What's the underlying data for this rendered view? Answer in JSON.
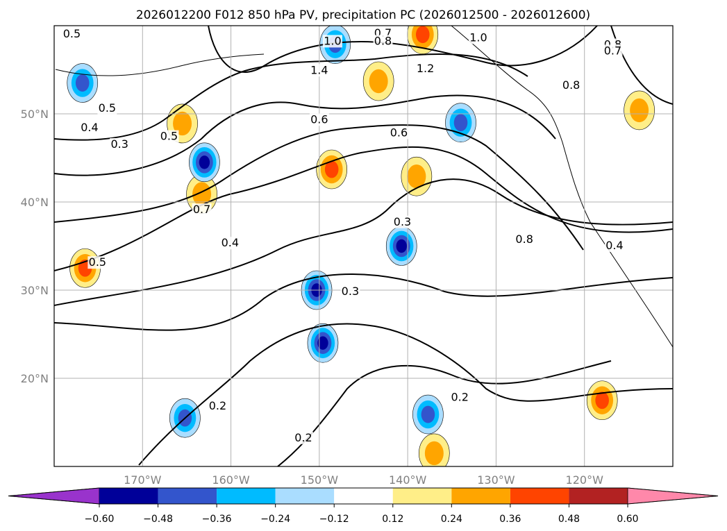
{
  "chart_data": {
    "type": "contour_map",
    "title": "2026012200 F012 850 hPa PV, precipitation PC (2026012500 - 2026012600)",
    "xlabel": "",
    "ylabel": "",
    "xlim_lon": [
      -180,
      -110
    ],
    "ylim_lat": [
      10,
      60
    ],
    "x_ticks": [
      {
        "lon": -170,
        "label": "170°W"
      },
      {
        "lon": -160,
        "label": "160°W"
      },
      {
        "lon": -150,
        "label": "150°W"
      },
      {
        "lon": -140,
        "label": "140°W"
      },
      {
        "lon": -130,
        "label": "130°W"
      },
      {
        "lon": -120,
        "label": "120°W"
      }
    ],
    "y_ticks": [
      {
        "lat": 20,
        "label": "20°N"
      },
      {
        "lat": 30,
        "label": "30°N"
      },
      {
        "lat": 40,
        "label": "40°N"
      },
      {
        "lat": 50,
        "label": "50°N"
      }
    ],
    "grid": true,
    "colorbar": {
      "levels": [
        -0.6,
        -0.48,
        -0.36,
        -0.24,
        -0.12,
        0.12,
        0.24,
        0.36,
        0.48,
        0.6
      ],
      "tick_labels": [
        "−0.60",
        "−0.48",
        "−0.36",
        "−0.24",
        "−0.12",
        "0.12",
        "0.24",
        "0.36",
        "0.48",
        "0.60"
      ],
      "colors": [
        "#9933cc",
        "#000099",
        "#3355cc",
        "#00bbff",
        "#aaddff",
        "#ffffff",
        "#ffee88",
        "#ffa500",
        "#ff4400",
        "#b22222",
        "#ff88aa"
      ],
      "extend": "both"
    },
    "pv_contour_labels": [
      {
        "text": "0.5",
        "lon": -178.0,
        "lat": 58.8
      },
      {
        "text": "0.7",
        "lon": -142.8,
        "lat": 58.9
      },
      {
        "text": "0.8",
        "lon": -142.8,
        "lat": 58.0
      },
      {
        "text": "1.0",
        "lon": -148.5,
        "lat": 58.0
      },
      {
        "text": "1.0",
        "lon": -132.0,
        "lat": 58.4
      },
      {
        "text": "0.8",
        "lon": -116.8,
        "lat": 57.6
      },
      {
        "text": "0.7",
        "lon": -116.8,
        "lat": 56.9
      },
      {
        "text": "1.4",
        "lon": -150.0,
        "lat": 54.7
      },
      {
        "text": "1.2",
        "lon": -138.0,
        "lat": 54.9
      },
      {
        "text": "0.8",
        "lon": -121.5,
        "lat": 53.0
      },
      {
        "text": "0.5",
        "lon": -174.0,
        "lat": 50.4
      },
      {
        "text": "0.4",
        "lon": -176.0,
        "lat": 48.2
      },
      {
        "text": "0.3",
        "lon": -172.6,
        "lat": 46.3
      },
      {
        "text": "0.5",
        "lon": -167.0,
        "lat": 47.2
      },
      {
        "text": "0.6",
        "lon": -150.0,
        "lat": 49.1
      },
      {
        "text": "0.6",
        "lon": -141.0,
        "lat": 47.6
      },
      {
        "text": "0.7",
        "lon": -163.3,
        "lat": 38.9
      },
      {
        "text": "0.4",
        "lon": -160.1,
        "lat": 35.1
      },
      {
        "text": "0.5",
        "lon": -175.1,
        "lat": 32.9
      },
      {
        "text": "0.3",
        "lon": -140.6,
        "lat": 37.5
      },
      {
        "text": "0.8",
        "lon": -126.8,
        "lat": 35.5
      },
      {
        "text": "0.4",
        "lon": -116.6,
        "lat": 34.8
      },
      {
        "text": "0.3",
        "lon": -146.5,
        "lat": 29.6
      },
      {
        "text": "0.2",
        "lon": -134.1,
        "lat": 17.6
      },
      {
        "text": "0.2",
        "lon": -161.5,
        "lat": 16.6
      },
      {
        "text": "0.2",
        "lon": -151.8,
        "lat": 13.0
      }
    ],
    "precip_shaded_regions": [
      {
        "sign": "positive",
        "lon": -176.5,
        "lat": 32.5,
        "peak_level": 0.36
      },
      {
        "sign": "positive",
        "lon": -148.6,
        "lat": 43.7,
        "peak_level": 0.36
      },
      {
        "sign": "positive",
        "lon": -138.3,
        "lat": 59.0,
        "peak_level": 0.36
      },
      {
        "sign": "positive",
        "lon": -118.0,
        "lat": 17.5,
        "peak_level": 0.36
      },
      {
        "sign": "positive",
        "lon": -139.0,
        "lat": 42.9,
        "peak_level": 0.24
      },
      {
        "sign": "positive",
        "lon": -165.5,
        "lat": 48.9,
        "peak_level": 0.24
      },
      {
        "sign": "positive",
        "lon": -163.3,
        "lat": 40.9,
        "peak_level": 0.24
      },
      {
        "sign": "positive",
        "lon": -143.3,
        "lat": 53.7,
        "peak_level": 0.24
      },
      {
        "sign": "positive",
        "lon": -113.8,
        "lat": 50.4,
        "peak_level": 0.24
      },
      {
        "sign": "positive",
        "lon": -137.0,
        "lat": 11.5,
        "peak_level": 0.24
      },
      {
        "sign": "negative",
        "lon": -163.0,
        "lat": 44.5,
        "peak_level": -0.48
      },
      {
        "sign": "negative",
        "lon": -140.7,
        "lat": 35.0,
        "peak_level": -0.48
      },
      {
        "sign": "negative",
        "lon": -176.8,
        "lat": 53.5,
        "peak_level": -0.36
      },
      {
        "sign": "negative",
        "lon": -148.2,
        "lat": 57.9,
        "peak_level": -0.36
      },
      {
        "sign": "negative",
        "lon": -150.3,
        "lat": 30.0,
        "peak_level": -0.48
      },
      {
        "sign": "negative",
        "lon": -149.6,
        "lat": 24.0,
        "peak_level": -0.48
      },
      {
        "sign": "negative",
        "lon": -134.0,
        "lat": 49.0,
        "peak_level": -0.36
      },
      {
        "sign": "negative",
        "lon": -165.2,
        "lat": 15.5,
        "peak_level": -0.36
      },
      {
        "sign": "negative",
        "lon": -137.7,
        "lat": 15.9,
        "peak_level": -0.36
      }
    ]
  }
}
